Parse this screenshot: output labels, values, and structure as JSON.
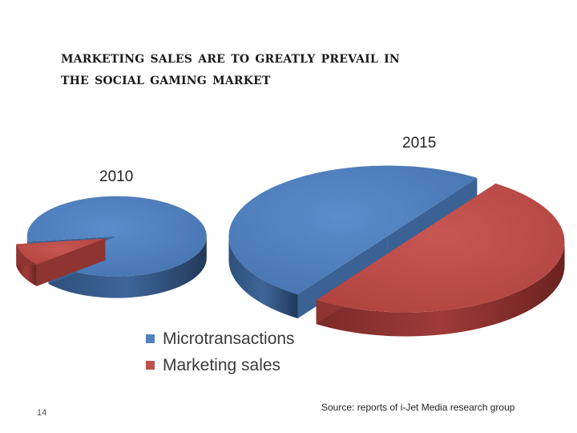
{
  "slide": {
    "title_line1": "Marketing sales are to greatly prevail in",
    "title_line2": "the Social Gaming market",
    "page_number": "14",
    "source": "Source: reports of i-Jet Media research group"
  },
  "colors": {
    "microtransactions": "#4f81bd",
    "marketing_sales": "#c0504d"
  },
  "chart_data": [
    {
      "type": "pie",
      "title": "2010",
      "categories": [
        "Microtransactions",
        "Marketing sales"
      ],
      "values": [
        91,
        9
      ],
      "exploded": "Marketing sales"
    },
    {
      "type": "pie",
      "title": "2015",
      "categories": [
        "Microtransactions",
        "Marketing sales"
      ],
      "values": [
        50,
        50
      ],
      "exploded": "Marketing sales"
    }
  ],
  "legend": {
    "placement": "bottom",
    "items": [
      {
        "label": "Microtransactions",
        "color": "#4f81bd"
      },
      {
        "label": "Marketing sales",
        "color": "#c0504d"
      }
    ]
  }
}
